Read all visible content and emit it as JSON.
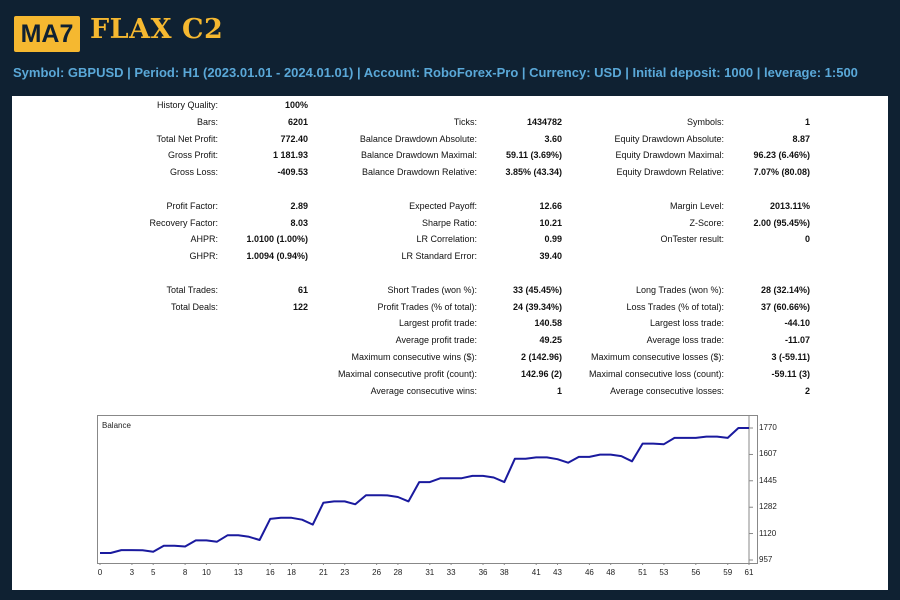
{
  "header": {
    "logo_label": "MA7",
    "product_name": "FLAX C2",
    "info_line": "Symbol: GBPUSD  |  Period: H1 (2023.01.01 - 2024.01.01)  |  Account: RoboForex-Pro  |  Currency: USD  | Initial deposit: 1000  |  leverage: 1:500"
  },
  "report": {
    "col1": [
      {
        "label": "History Quality:",
        "value": "100%"
      },
      {
        "label": "Bars:",
        "value": "6201"
      },
      {
        "label": "Total Net Profit:",
        "value": "772.40"
      },
      {
        "label": "Gross Profit:",
        "value": "1 181.93"
      },
      {
        "label": "Gross Loss:",
        "value": "-409.53"
      },
      {
        "label": "Profit Factor:",
        "value": "2.89"
      },
      {
        "label": "Recovery Factor:",
        "value": "8.03"
      },
      {
        "label": "AHPR:",
        "value": "1.0100 (1.00%)"
      },
      {
        "label": "GHPR:",
        "value": "1.0094 (0.94%)"
      },
      {
        "label": "Total Trades:",
        "value": "61"
      },
      {
        "label": "Total Deals:",
        "value": "122"
      }
    ],
    "col2": [
      {
        "label": "Ticks:",
        "value": "1434782"
      },
      {
        "label": "Balance Drawdown Absolute:",
        "value": "3.60"
      },
      {
        "label": "Balance Drawdown Maximal:",
        "value": "59.11 (3.69%)"
      },
      {
        "label": "Balance Drawdown Relative:",
        "value": "3.85% (43.34)"
      },
      {
        "label": "Expected Payoff:",
        "value": "12.66"
      },
      {
        "label": "Sharpe Ratio:",
        "value": "10.21"
      },
      {
        "label": "LR Correlation:",
        "value": "0.99"
      },
      {
        "label": "LR Standard Error:",
        "value": "39.40"
      },
      {
        "label": "Short Trades (won %):",
        "value": "33 (45.45%)"
      },
      {
        "label": "Profit Trades (% of total):",
        "value": "24 (39.34%)"
      },
      {
        "label": "Largest profit trade:",
        "value": "140.58"
      },
      {
        "label": "Average profit trade:",
        "value": "49.25"
      },
      {
        "label": "Maximum consecutive wins ($):",
        "value": "2 (142.96)"
      },
      {
        "label": "Maximal consecutive profit (count):",
        "value": "142.96 (2)"
      },
      {
        "label": "Average consecutive wins:",
        "value": "1"
      }
    ],
    "col3": [
      {
        "label": "Symbols:",
        "value": "1"
      },
      {
        "label": "Equity Drawdown Absolute:",
        "value": "8.87"
      },
      {
        "label": "Equity Drawdown Maximal:",
        "value": "96.23 (6.46%)"
      },
      {
        "label": "Equity Drawdown Relative:",
        "value": "7.07% (80.08)"
      },
      {
        "label": "Margin Level:",
        "value": "2013.11%"
      },
      {
        "label": "Z-Score:",
        "value": "2.00 (95.45%)"
      },
      {
        "label": "OnTester result:",
        "value": "0"
      },
      {
        "label": "Long Trades (won %):",
        "value": "28 (32.14%)"
      },
      {
        "label": "Loss Trades (% of total):",
        "value": "37 (60.66%)"
      },
      {
        "label": "Largest loss trade:",
        "value": "-44.10"
      },
      {
        "label": "Average loss trade:",
        "value": "-11.07"
      },
      {
        "label": "Maximum consecutive losses ($):",
        "value": "3 (-59.11)"
      },
      {
        "label": "Maximal consecutive loss (count):",
        "value": "-59.11 (3)"
      },
      {
        "label": "Average consecutive losses:",
        "value": "2"
      }
    ]
  },
  "chart_data": {
    "type": "line",
    "title": "Balance",
    "xlabel": "",
    "ylabel": "",
    "x_ticks": [
      "0",
      "3",
      "5",
      "8",
      "10",
      "13",
      "16",
      "18",
      "21",
      "23",
      "26",
      "28",
      "31",
      "33",
      "36",
      "38",
      "41",
      "43",
      "46",
      "48",
      "51",
      "53",
      "56",
      "59",
      "61"
    ],
    "y_ticks": [
      "1770",
      "1607",
      "1445",
      "1282",
      "1120",
      "957"
    ],
    "ylim": [
      957,
      1770
    ],
    "xlim": [
      0,
      61
    ],
    "grid": false,
    "line_color": "#1a1a9e",
    "series": [
      {
        "name": "Balance",
        "x": [
          0,
          1,
          2,
          3,
          4,
          5,
          6,
          7,
          8,
          9,
          10,
          11,
          12,
          13,
          14,
          15,
          16,
          17,
          18,
          19,
          20,
          21,
          22,
          23,
          24,
          25,
          26,
          27,
          28,
          29,
          30,
          31,
          32,
          33,
          34,
          35,
          36,
          37,
          38,
          39,
          40,
          41,
          42,
          43,
          44,
          45,
          46,
          47,
          48,
          49,
          50,
          51,
          52,
          53,
          54,
          55,
          56,
          57,
          58,
          59,
          60,
          61
        ],
        "values": [
          1000,
          1000,
          1018,
          1018,
          1017,
          1008,
          1045,
          1045,
          1040,
          1078,
          1078,
          1070,
          1110,
          1110,
          1100,
          1080,
          1210,
          1217,
          1217,
          1205,
          1175,
          1310,
          1318,
          1318,
          1300,
          1356,
          1356,
          1355,
          1345,
          1318,
          1437,
          1437,
          1461,
          1461,
          1461,
          1475,
          1475,
          1465,
          1437,
          1581,
          1581,
          1589,
          1589,
          1578,
          1556,
          1592,
          1592,
          1606,
          1606,
          1597,
          1565,
          1674,
          1674,
          1670,
          1709,
          1709,
          1709,
          1717,
          1717,
          1709,
          1770,
          1770
        ]
      }
    ]
  }
}
